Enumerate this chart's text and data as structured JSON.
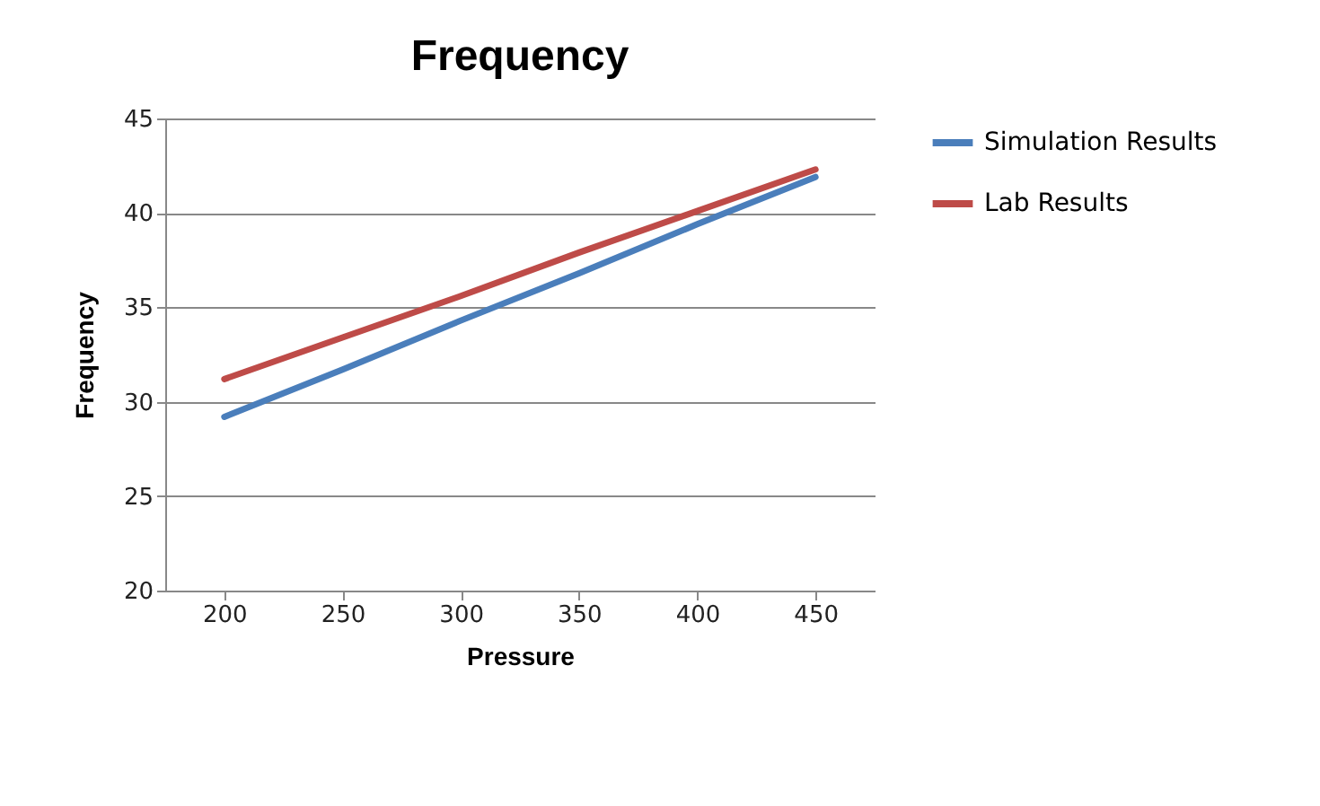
{
  "chart_data": {
    "type": "line",
    "title": "Frequency",
    "xlabel": "Pressure",
    "ylabel": "Frequency",
    "categories": [
      "200",
      "250",
      "300",
      "350",
      "400",
      "450"
    ],
    "series": [
      {
        "name": "Simulation Results",
        "color": "#4a7ebb",
        "values": [
          29.2,
          31.7,
          34.3,
          36.8,
          39.4,
          41.9
        ]
      },
      {
        "name": "Lab Results",
        "color": "#be4b48",
        "values": [
          31.2,
          33.4,
          35.6,
          37.9,
          40.1,
          42.3
        ]
      }
    ],
    "ylim": [
      20,
      45
    ],
    "yticks": [
      20,
      25,
      30,
      35,
      40,
      45
    ],
    "grid": "y",
    "legend": "right",
    "marker": "none",
    "line_style": "solid"
  }
}
